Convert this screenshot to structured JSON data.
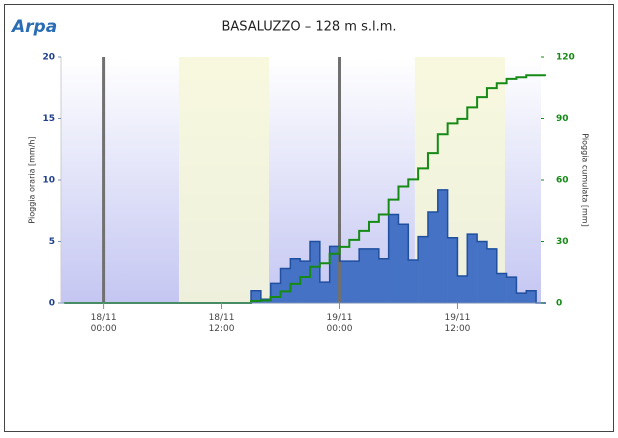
{
  "logo": "Arpa",
  "chart_data": {
    "type": "step-combo",
    "title": "BASALUZZO – 128 m s.l.m.",
    "y_label": "Pioggia oraria [mm/h]",
    "y2_label": "Pioggia cumulata [mm]",
    "x": [
      "17/11 20:00",
      "17/11 21:00",
      "17/11 22:00",
      "17/11 23:00",
      "18/11 00:00",
      "18/11 01:00",
      "18/11 02:00",
      "18/11 03:00",
      "18/11 04:00",
      "18/11 05:00",
      "18/11 06:00",
      "18/11 07:00",
      "18/11 08:00",
      "18/11 09:00",
      "18/11 10:00",
      "18/11 11:00",
      "18/11 12:00",
      "18/11 13:00",
      "18/11 14:00",
      "18/11 15:00",
      "18/11 16:00",
      "18/11 17:00",
      "18/11 18:00",
      "18/11 19:00",
      "18/11 20:00",
      "18/11 21:00",
      "18/11 22:00",
      "18/11 23:00",
      "19/11 00:00",
      "19/11 01:00",
      "19/11 02:00",
      "19/11 03:00",
      "19/11 04:00",
      "19/11 05:00",
      "19/11 06:00",
      "19/11 07:00",
      "19/11 08:00",
      "19/11 09:00",
      "19/11 10:00",
      "19/11 11:00",
      "19/11 12:00",
      "19/11 13:00",
      "19/11 14:00",
      "19/11 15:00",
      "19/11 16:00",
      "19/11 17:00",
      "19/11 18:00",
      "19/11 19:00",
      "19/11 20:00"
    ],
    "series": [
      {
        "name": "Pioggia oraria",
        "color": "#4572c4",
        "values": [
          0,
          0,
          0,
          0,
          0,
          0,
          0,
          0,
          0,
          0,
          0,
          0,
          0,
          0,
          0,
          0,
          0,
          0,
          0,
          1.0,
          0.3,
          1.6,
          2.8,
          3.6,
          3.4,
          5.0,
          1.7,
          4.6,
          3.4,
          3.4,
          4.4,
          4.4,
          3.6,
          7.2,
          6.4,
          3.5,
          5.4,
          7.4,
          9.2,
          5.3,
          2.2,
          5.6,
          5.0,
          4.4,
          2.4,
          2.1,
          0.8,
          1.0,
          0
        ]
      },
      {
        "name": "Pioggia cumulata",
        "color": "#158a15",
        "axis": "y2",
        "values": [
          0,
          0,
          0,
          0,
          0,
          0,
          0,
          0,
          0,
          0,
          0,
          0,
          0,
          0,
          0,
          0,
          0,
          0,
          0,
          1.0,
          1.3,
          2.9,
          5.7,
          9.3,
          12.7,
          17.7,
          19.4,
          24.0,
          27.4,
          30.8,
          35.2,
          39.6,
          43.2,
          50.4,
          56.8,
          60.3,
          65.7,
          73.1,
          82.3,
          87.6,
          89.8,
          95.4,
          100.4,
          104.8,
          107.2,
          109.3,
          110.1,
          111.1,
          111.1
        ]
      }
    ],
    "xlim": [
      "17/11 19:40",
      "19/11 20:30"
    ],
    "xticks": [
      {
        "value": "18/11 00:00",
        "label": "18/11\n00:00"
      },
      {
        "value": "18/11 12:00",
        "label": "18/11\n12:00"
      },
      {
        "value": "19/11 00:00",
        "label": "19/11\n00:00"
      },
      {
        "value": "19/11 12:00",
        "label": "19/11\n12:00"
      }
    ],
    "ylim": [
      0,
      20
    ],
    "yticks": [
      0,
      5,
      10,
      15,
      20
    ],
    "y2lim": [
      0,
      120
    ],
    "y2ticks": [
      0,
      30,
      60,
      90,
      120
    ],
    "plot_bands": [
      [
        "18/11 07:40",
        "18/11 16:50"
      ],
      [
        "19/11 07:40",
        "19/11 16:50"
      ]
    ],
    "plot_lines": [
      "18/11 00:00",
      "19/11 00:00"
    ]
  }
}
